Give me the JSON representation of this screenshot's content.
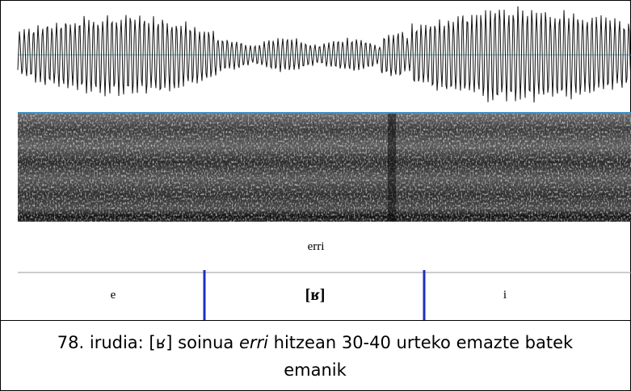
{
  "figure": {
    "word": "erri",
    "segments": [
      "e",
      "[ʁ]",
      "i"
    ]
  },
  "caption": {
    "before": "78. irudia: [ʁ] soinua ",
    "italic": "erri",
    "after_line1": " hitzean 30-40 urteko emazte batek",
    "line2": "emanik"
  }
}
